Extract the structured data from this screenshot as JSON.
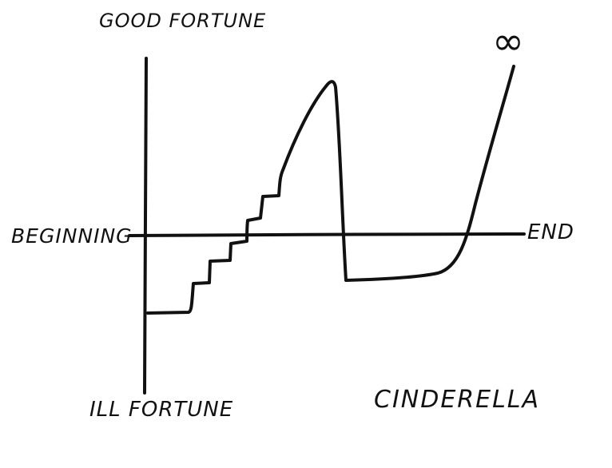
{
  "labels": {
    "top": "GOOD FORTUNE",
    "bottom": "ILL FORTUNE",
    "left": "BEGINNING",
    "right": "END",
    "title": "CINDERELLA",
    "infinity": "∞"
  },
  "colors": {
    "ink": "#111111",
    "background": "#ffffff"
  }
}
